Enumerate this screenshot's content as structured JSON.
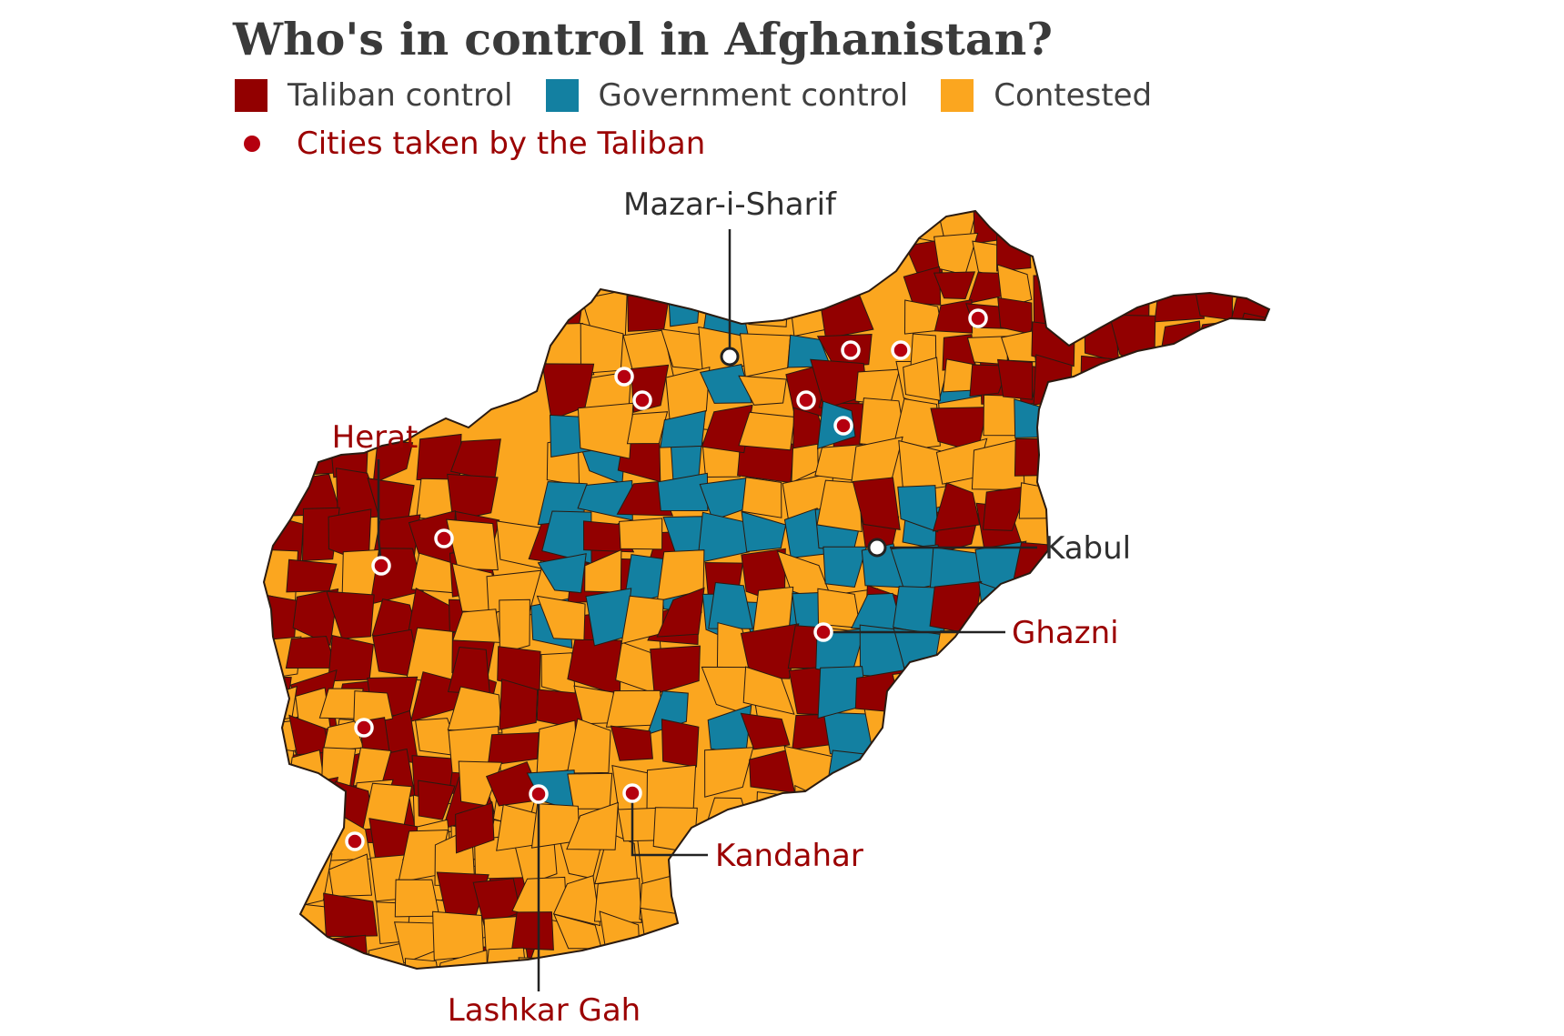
{
  "title": "Who's in control in Afghanistan?",
  "legend": {
    "taliban": {
      "label": "Taliban control",
      "color": "#920000"
    },
    "government": {
      "label": "Government control",
      "color": "#1380a1"
    },
    "contested": {
      "label": "Contested",
      "color": "#fba61f"
    },
    "cities_taken": {
      "label": "Cities taken by the Taliban",
      "color": "#b5000f"
    }
  },
  "labels": {
    "mazar": "Mazar-i-Sharif",
    "herat": "Herat",
    "kabul": "Kabul",
    "ghazni": "Ghazni",
    "kandahar": "Kandahar",
    "lashkar_gah": "Lashkar Gah"
  },
  "colors": {
    "label_red": "#9b0000",
    "label_dark": "#2f2f2f",
    "border": "#2a1a10"
  }
}
